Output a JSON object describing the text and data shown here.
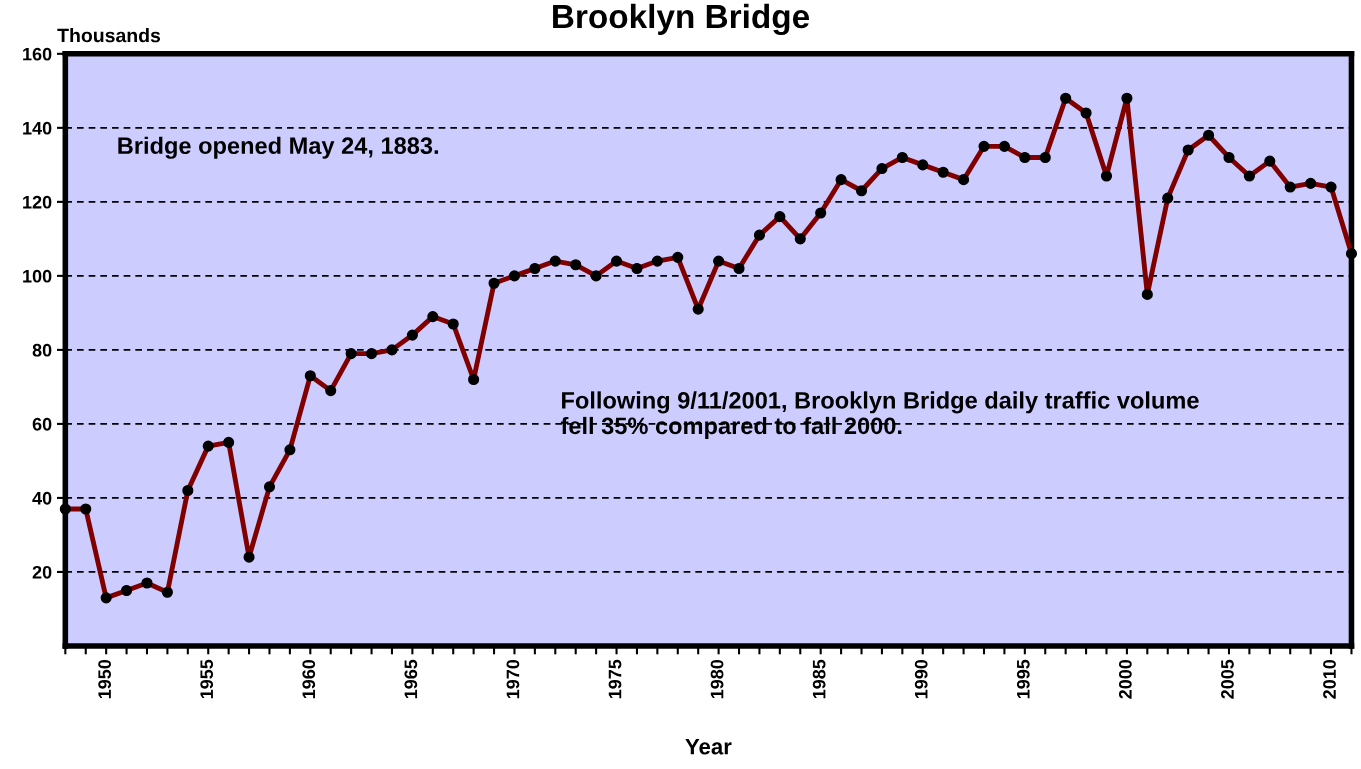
{
  "chart_data": {
    "type": "line",
    "title": "Brooklyn Bridge",
    "xlabel": "Year",
    "ylabel": "Thousands",
    "annotations": [
      "Bridge opened May 24, 1883.",
      "Following 9/11/2001, Brooklyn Bridge daily traffic volume\nfell 35% compared to fall 2000."
    ],
    "x": [
      1948,
      1949,
      1950,
      1951,
      1952,
      1953,
      1954,
      1955,
      1956,
      1957,
      1958,
      1959,
      1960,
      1961,
      1962,
      1963,
      1964,
      1965,
      1966,
      1967,
      1968,
      1969,
      1970,
      1971,
      1972,
      1973,
      1974,
      1975,
      1976,
      1977,
      1978,
      1979,
      1980,
      1981,
      1982,
      1983,
      1984,
      1985,
      1986,
      1987,
      1988,
      1989,
      1990,
      1991,
      1992,
      1993,
      1994,
      1995,
      1996,
      1997,
      1998,
      1999,
      2000,
      2001,
      2002,
      2003,
      2004,
      2005,
      2006,
      2007,
      2008,
      2009,
      2010,
      2011
    ],
    "series": [
      {
        "color": "#800000",
        "values": [
          37,
          37,
          13,
          15,
          17,
          14.5,
          42,
          54,
          55,
          24,
          43,
          53,
          73,
          69,
          79,
          79,
          80,
          84,
          89,
          87,
          72,
          98,
          100,
          102,
          104,
          103,
          100,
          104,
          102,
          104,
          105,
          91,
          104,
          102,
          111,
          116,
          110,
          117,
          126,
          123,
          129,
          132,
          130,
          128,
          126,
          135,
          135,
          132,
          132,
          148,
          144,
          127,
          148,
          95,
          121,
          134,
          138,
          132,
          127,
          131,
          124,
          125,
          124,
          106
        ]
      }
    ],
    "xlim": [
      1948,
      2011
    ],
    "xticks": [
      {
        "value": 1948,
        "label": null
      },
      {
        "value": 1949,
        "label": null
      },
      1950,
      {
        "value": 1951,
        "label": null
      },
      {
        "value": 1952,
        "label": null
      },
      {
        "value": 1953,
        "label": null
      },
      {
        "value": 1954,
        "label": null
      },
      1955,
      {
        "value": 1956,
        "label": null
      },
      {
        "value": 1957,
        "label": null
      },
      {
        "value": 1958,
        "label": null
      },
      {
        "value": 1959,
        "label": null
      },
      1960,
      {
        "value": 1961,
        "label": null
      },
      {
        "value": 1962,
        "label": null
      },
      {
        "value": 1963,
        "label": null
      },
      {
        "value": 1964,
        "label": null
      },
      1965,
      {
        "value": 1966,
        "label": null
      },
      {
        "value": 1967,
        "label": null
      },
      {
        "value": 1968,
        "label": null
      },
      {
        "value": 1969,
        "label": null
      },
      1970,
      {
        "value": 1971,
        "label": null
      },
      {
        "value": 1972,
        "label": null
      },
      {
        "value": 1973,
        "label": null
      },
      {
        "value": 1974,
        "label": null
      },
      1975,
      {
        "value": 1976,
        "label": null
      },
      {
        "value": 1977,
        "label": null
      },
      {
        "value": 1978,
        "label": null
      },
      {
        "value": 1979,
        "label": null
      },
      1980,
      {
        "value": 1981,
        "label": null
      },
      {
        "value": 1982,
        "label": null
      },
      {
        "value": 1983,
        "label": null
      },
      {
        "value": 1984,
        "label": null
      },
      1985,
      {
        "value": 1986,
        "label": null
      },
      {
        "value": 1987,
        "label": null
      },
      {
        "value": 1988,
        "label": null
      },
      {
        "value": 1989,
        "label": null
      },
      1990,
      {
        "value": 1991,
        "label": null
      },
      {
        "value": 1992,
        "label": null
      },
      {
        "value": 1993,
        "label": null
      },
      {
        "value": 1994,
        "label": null
      },
      1995,
      {
        "value": 1996,
        "label": null
      },
      {
        "value": 1997,
        "label": null
      },
      {
        "value": 1998,
        "label": null
      },
      {
        "value": 1999,
        "label": null
      },
      2000,
      {
        "value": 2001,
        "label": null
      },
      {
        "value": 2002,
        "label": null
      },
      {
        "value": 2003,
        "label": null
      },
      {
        "value": 2004,
        "label": null
      },
      2005,
      {
        "value": 2006,
        "label": null
      },
      {
        "value": 2007,
        "label": null
      },
      {
        "value": 2008,
        "label": null
      },
      {
        "value": 2009,
        "label": null
      },
      2010,
      {
        "value": 2011,
        "label": null
      }
    ],
    "ylim": [
      0,
      160
    ],
    "yticks": [
      20,
      40,
      60,
      80,
      100,
      120,
      140,
      160
    ],
    "grid": "y",
    "marker": "circle",
    "line_style": "solid"
  }
}
